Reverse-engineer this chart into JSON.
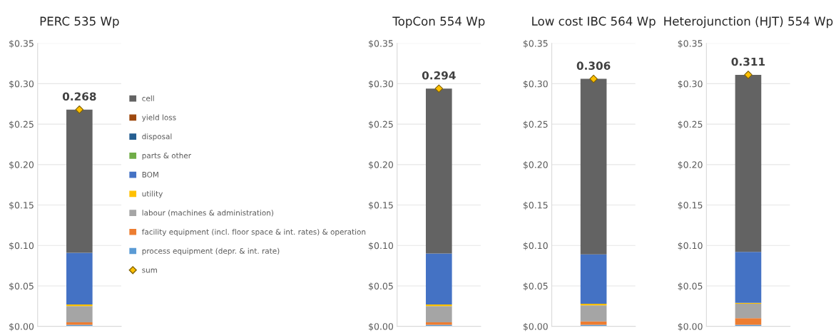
{
  "chart_data": [
    {
      "type": "bar",
      "title": "PERC 535 Wp",
      "categories": [
        null
      ],
      "stacked": true,
      "legend": "right",
      "grid": "y",
      "ylim": [
        0,
        0.35
      ],
      "yticks": [
        {
          "value": 0,
          "label": "$0.00"
        },
        {
          "value": 0.05,
          "label": "$0.05"
        },
        {
          "value": 0.1,
          "label": "$0.10"
        },
        {
          "value": 0.15,
          "label": "$0.15"
        },
        {
          "value": 0.2,
          "label": "$0.20"
        },
        {
          "value": 0.25,
          "label": "$0.25"
        },
        {
          "value": 0.3,
          "label": "$0.30"
        },
        {
          "value": 0.35,
          "label": "$0.35"
        }
      ],
      "series": [
        {
          "name": "process equipment (depr. & int. rate)",
          "color": "#5b9bd5",
          "values": [
            0.002
          ]
        },
        {
          "name": "facility equipment (incl. floor space & int. rates) & operation",
          "color": "#ed7d31",
          "values": [
            0.003
          ]
        },
        {
          "name": "labour (machines & administration)",
          "color": "#a5a5a5",
          "values": [
            0.02
          ]
        },
        {
          "name": "utility",
          "color": "#ffc000",
          "values": [
            0.002
          ]
        },
        {
          "name": "BOM",
          "color": "#4472c4",
          "values": [
            0.064
          ]
        },
        {
          "name": "parts & other",
          "color": "#70ad47",
          "values": [
            0
          ]
        },
        {
          "name": "disposal",
          "color": "#255e91",
          "values": [
            0
          ]
        },
        {
          "name": "yield loss",
          "color": "#9e480e",
          "values": [
            0
          ]
        },
        {
          "name": "cell",
          "color": "#636363",
          "values": [
            0.177
          ]
        },
        {
          "name": "sum",
          "type": "scatter",
          "marker": "diamond",
          "color": "#ffc000",
          "values": [
            0.268
          ],
          "value_labels": [
            "0.268"
          ]
        }
      ]
    },
    {
      "type": "bar",
      "title": "TopCon 554 Wp",
      "categories": [
        null
      ],
      "stacked": true,
      "grid": "y",
      "ylim": [
        0,
        0.35
      ],
      "yticks": [
        {
          "value": 0,
          "label": "$0.00"
        },
        {
          "value": 0.05,
          "label": "$0.05"
        },
        {
          "value": 0.1,
          "label": "$0.10"
        },
        {
          "value": 0.15,
          "label": "$0.15"
        },
        {
          "value": 0.2,
          "label": "$0.20"
        },
        {
          "value": 0.25,
          "label": "$0.25"
        },
        {
          "value": 0.3,
          "label": "$0.30"
        },
        {
          "value": 0.35,
          "label": "$0.35"
        }
      ],
      "series": [
        {
          "color": "#5b9bd5",
          "values": [
            0.002
          ]
        },
        {
          "color": "#ed7d31",
          "values": [
            0.003
          ]
        },
        {
          "color": "#a5a5a5",
          "values": [
            0.02
          ]
        },
        {
          "color": "#ffc000",
          "values": [
            0.002
          ]
        },
        {
          "color": "#4472c4",
          "values": [
            0.063
          ]
        },
        {
          "color": "#70ad47",
          "values": [
            0
          ]
        },
        {
          "color": "#255e91",
          "values": [
            0
          ]
        },
        {
          "color": "#9e480e",
          "values": [
            0
          ]
        },
        {
          "color": "#636363",
          "values": [
            0.204
          ]
        },
        {
          "type": "scatter",
          "marker": "diamond",
          "color": "#ffc000",
          "values": [
            0.294
          ],
          "value_labels": [
            "0.294"
          ]
        }
      ]
    },
    {
      "type": "bar",
      "title": "Low cost IBC 564 Wp",
      "categories": [
        null
      ],
      "stacked": true,
      "grid": "y",
      "ylim": [
        0,
        0.35
      ],
      "yticks": [
        {
          "value": 0,
          "label": "$0.00"
        },
        {
          "value": 0.05,
          "label": "$0.05"
        },
        {
          "value": 0.1,
          "label": "$0.10"
        },
        {
          "value": 0.15,
          "label": "$0.15"
        },
        {
          "value": 0.2,
          "label": "$0.20"
        },
        {
          "value": 0.25,
          "label": "$0.25"
        },
        {
          "value": 0.3,
          "label": "$0.30"
        },
        {
          "value": 0.35,
          "label": "$0.35"
        }
      ],
      "series": [
        {
          "color": "#5b9bd5",
          "values": [
            0.002
          ]
        },
        {
          "color": "#ed7d31",
          "values": [
            0.004
          ]
        },
        {
          "color": "#a5a5a5",
          "values": [
            0.02
          ]
        },
        {
          "color": "#ffc000",
          "values": [
            0.002
          ]
        },
        {
          "color": "#4472c4",
          "values": [
            0.061
          ]
        },
        {
          "color": "#70ad47",
          "values": [
            0
          ]
        },
        {
          "color": "#255e91",
          "values": [
            0
          ]
        },
        {
          "color": "#9e480e",
          "values": [
            0
          ]
        },
        {
          "color": "#636363",
          "values": [
            0.217
          ]
        },
        {
          "type": "scatter",
          "marker": "diamond",
          "color": "#ffc000",
          "values": [
            0.306
          ],
          "value_labels": [
            "0.306"
          ]
        }
      ]
    },
    {
      "type": "bar",
      "title": "Heterojunction (HJT) 554 Wp",
      "categories": [
        null
      ],
      "stacked": true,
      "grid": "y",
      "ylim": [
        0,
        0.35
      ],
      "yticks": [
        {
          "value": 0,
          "label": "$0.00"
        },
        {
          "value": 0.05,
          "label": "$0.05"
        },
        {
          "value": 0.1,
          "label": "$0.10"
        },
        {
          "value": 0.15,
          "label": "$0.15"
        },
        {
          "value": 0.2,
          "label": "$0.20"
        },
        {
          "value": 0.25,
          "label": "$0.25"
        },
        {
          "value": 0.3,
          "label": "$0.30"
        },
        {
          "value": 0.35,
          "label": "$0.35"
        }
      ],
      "series": [
        {
          "color": "#5b9bd5",
          "values": [
            0.002
          ]
        },
        {
          "color": "#ed7d31",
          "values": [
            0.008
          ]
        },
        {
          "color": "#a5a5a5",
          "values": [
            0.018
          ]
        },
        {
          "color": "#ffc000",
          "values": [
            0.001
          ]
        },
        {
          "color": "#4472c4",
          "values": [
            0.063
          ]
        },
        {
          "color": "#70ad47",
          "values": [
            0
          ]
        },
        {
          "color": "#255e91",
          "values": [
            0
          ]
        },
        {
          "color": "#9e480e",
          "values": [
            0
          ]
        },
        {
          "color": "#636363",
          "values": [
            0.219
          ]
        },
        {
          "type": "scatter",
          "marker": "diamond",
          "color": "#ffc000",
          "values": [
            0.311
          ],
          "value_labels": [
            "0.311"
          ]
        }
      ]
    }
  ]
}
